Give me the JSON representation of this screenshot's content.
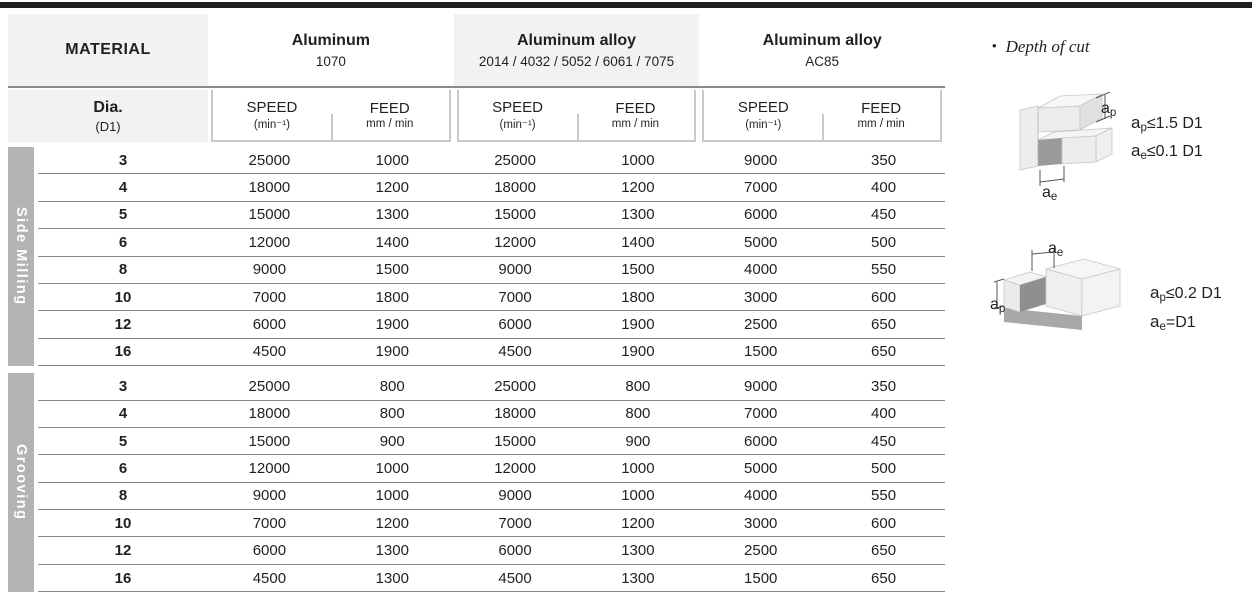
{
  "colors": {
    "top_bar": "#231f20",
    "header_cell_bg": "#f2f2f2",
    "section_label_bg": "#b3b3b3",
    "row_line": "#8a8a8a",
    "subheader_border": "#c9c9c9"
  },
  "table": {
    "material_label": "MATERIAL",
    "dia_label": "Dia.",
    "dia_sub": "(D1)",
    "speed_label": "SPEED",
    "speed_unit": "(min⁻¹)",
    "feed_label": "FEED",
    "feed_unit": "mm / min",
    "materials": [
      {
        "name": "Aluminum",
        "grades": "1070"
      },
      {
        "name": "Aluminum alloy",
        "grades": "2014 / 4032 / 5052 / 6061 / 7075"
      },
      {
        "name": "Aluminum alloy",
        "grades": "AC85"
      }
    ],
    "sections": [
      {
        "label": "Side Milling",
        "rows": [
          [
            3,
            25000,
            1000,
            25000,
            1000,
            9000,
            350
          ],
          [
            4,
            18000,
            1200,
            18000,
            1200,
            7000,
            400
          ],
          [
            5,
            15000,
            1300,
            15000,
            1300,
            6000,
            450
          ],
          [
            6,
            12000,
            1400,
            12000,
            1400,
            5000,
            500
          ],
          [
            8,
            9000,
            1500,
            9000,
            1500,
            4000,
            550
          ],
          [
            10,
            7000,
            1800,
            7000,
            1800,
            3000,
            600
          ],
          [
            12,
            6000,
            1900,
            6000,
            1900,
            2500,
            650
          ],
          [
            16,
            4500,
            1900,
            4500,
            1900,
            1500,
            650
          ]
        ]
      },
      {
        "label": "Grooving",
        "rows": [
          [
            3,
            25000,
            800,
            25000,
            800,
            9000,
            350
          ],
          [
            4,
            18000,
            800,
            18000,
            800,
            7000,
            400
          ],
          [
            5,
            15000,
            900,
            15000,
            900,
            6000,
            450
          ],
          [
            6,
            12000,
            1000,
            12000,
            1000,
            5000,
            500
          ],
          [
            8,
            9000,
            1000,
            9000,
            1000,
            4000,
            550
          ],
          [
            10,
            7000,
            1200,
            7000,
            1200,
            3000,
            600
          ],
          [
            12,
            6000,
            1300,
            6000,
            1300,
            2500,
            650
          ],
          [
            16,
            4500,
            1300,
            4500,
            1300,
            1500,
            650
          ]
        ]
      }
    ]
  },
  "notes": {
    "bullet": "•",
    "title": "Depth of cut",
    "side_milling": {
      "ap_label": {
        "base": "a",
        "sub": "p"
      },
      "ae_label": {
        "base": "a",
        "sub": "e"
      },
      "rules": [
        {
          "base": "a",
          "sub": "p",
          "rest": "≤1.5 D1"
        },
        {
          "base": "a",
          "sub": "e",
          "rest": "≤0.1 D1"
        }
      ]
    },
    "grooving": {
      "ap_label": {
        "base": "a",
        "sub": "p"
      },
      "ae_label": {
        "base": "a",
        "sub": "e"
      },
      "rules": [
        {
          "base": "a",
          "sub": "p",
          "rest": "≤0.2 D1"
        },
        {
          "base": "a",
          "sub": "e",
          "rest": "=D1"
        }
      ]
    }
  }
}
